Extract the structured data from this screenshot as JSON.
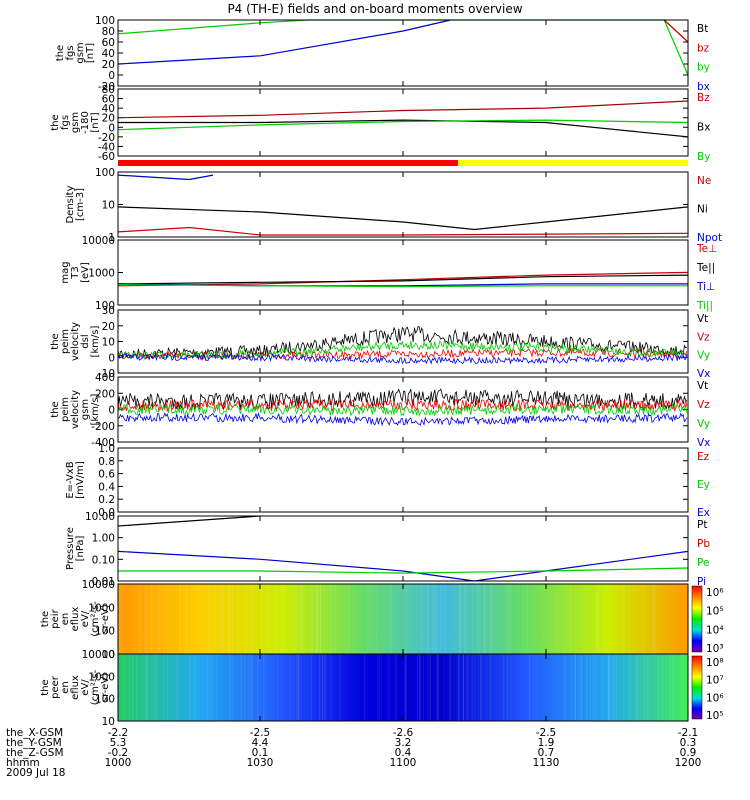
{
  "title": "P4 (TH-E) fields and on-board moments overview",
  "date_label": "2009 Jul 18",
  "panels": [
    {
      "id": "p1",
      "ylabel": [
        "the",
        "fgs",
        "gsm",
        "[nT]"
      ],
      "yticks": [
        "100",
        "80",
        "60",
        "40",
        "20",
        "0",
        "-20"
      ],
      "legend": [
        {
          "t": "Bt",
          "c": "#000000"
        },
        {
          "t": "bz",
          "c": "#cc0000"
        },
        {
          "t": "by",
          "c": "#00cc00"
        },
        {
          "t": "bx",
          "c": "#0000cc"
        }
      ]
    },
    {
      "id": "p2",
      "ylabel": [
        "the",
        "fgs",
        "gsm",
        "-180",
        "[nT]"
      ],
      "yticks": [
        "80",
        "60",
        "40",
        "20",
        "0",
        "-20",
        "-40",
        "-60"
      ],
      "legend": [
        {
          "t": "Bz",
          "c": "#cc0000"
        },
        {
          "t": "Bx",
          "c": "#000000"
        },
        {
          "t": "By",
          "c": "#00cc00"
        }
      ]
    },
    {
      "id": "p3",
      "ylabel": [
        "Density",
        "[cm-3]"
      ],
      "yticks": [
        "100",
        "10",
        "1"
      ],
      "legend": [
        {
          "t": "Ne",
          "c": "#cc0000"
        },
        {
          "t": "Ni",
          "c": "#000000"
        },
        {
          "t": "Npot",
          "c": "#0000cc"
        }
      ]
    },
    {
      "id": "p4",
      "ylabel": [
        "mag",
        "T3",
        "[eV]"
      ],
      "yticks": [
        "10000",
        "1000",
        "100"
      ],
      "legend": [
        {
          "t": "Te⊥",
          "c": "#cc0000"
        },
        {
          "t": "Te||",
          "c": "#000000"
        },
        {
          "t": "Ti⊥",
          "c": "#0000cc"
        },
        {
          "t": "Ti||",
          "c": "#00cc00"
        }
      ]
    },
    {
      "id": "p5",
      "ylabel": [
        "the",
        "peim",
        "velocity",
        "dsl",
        "[km/s]"
      ],
      "yticks": [
        "30",
        "20",
        "10",
        "0",
        "-10"
      ],
      "legend": [
        {
          "t": "Vt",
          "c": "#000000"
        },
        {
          "t": "Vz",
          "c": "#cc0000"
        },
        {
          "t": "Vy",
          "c": "#00cc00"
        },
        {
          "t": "Vx",
          "c": "#0000cc"
        }
      ]
    },
    {
      "id": "p6",
      "ylabel": [
        "the",
        "peim",
        "velocity",
        "gsm",
        "[km/s]"
      ],
      "yticks": [
        "400",
        "200",
        "0",
        "-200",
        "-400"
      ],
      "legend": [
        {
          "t": "Vt",
          "c": "#000000"
        },
        {
          "t": "Vz",
          "c": "#cc0000"
        },
        {
          "t": "Vy",
          "c": "#00cc00"
        },
        {
          "t": "Vx",
          "c": "#0000cc"
        }
      ]
    },
    {
      "id": "p7",
      "ylabel": [
        "E=-VxB",
        "[mV/m]"
      ],
      "yticks": [
        "1.0",
        "0.8",
        "0.6",
        "0.4",
        "0.2",
        "0.0"
      ],
      "legend": [
        {
          "t": "Ez",
          "c": "#cc0000"
        },
        {
          "t": "Ey",
          "c": "#00cc00"
        },
        {
          "t": "Ex",
          "c": "#0000cc"
        }
      ]
    },
    {
      "id": "p8",
      "ylabel": [
        "Pressure",
        "[nPa]"
      ],
      "yticks": [
        "10.00",
        "1.00",
        "0.10",
        "0.01"
      ],
      "legend": [
        {
          "t": "Pt",
          "c": "#000000"
        },
        {
          "t": "Pb",
          "c": "#cc0000"
        },
        {
          "t": "Pe",
          "c": "#00cc00"
        },
        {
          "t": "Pi",
          "c": "#0000cc"
        }
      ]
    },
    {
      "id": "p9",
      "ylabel": [
        "the",
        "peir",
        "en",
        "eflux",
        "eV/",
        "(cm²-s-",
        "sr-eV)"
      ],
      "yticks": [
        "10000",
        "1000",
        "100",
        "10"
      ],
      "cbar": [
        "10⁶",
        "10⁵",
        "10⁴",
        "10³"
      ]
    },
    {
      "id": "p10",
      "ylabel": [
        "the",
        "peer",
        "en",
        "eflux",
        "eV/",
        "(cm²-s-",
        "sr-eV)"
      ],
      "yticks": [
        "10000",
        "1000",
        "100",
        "10"
      ],
      "cbar": [
        "10⁸",
        "10⁷",
        "10⁶",
        "10⁵"
      ]
    }
  ],
  "bottom_axis": {
    "labels": [
      "the_X-GSM",
      "the_Y-GSM",
      "the_Z-GSM",
      "hhmm"
    ],
    "columns": [
      [
        "-2.2",
        "5.3",
        "-0.2",
        "1000"
      ],
      [
        "-2.5",
        "4.4",
        "0.1",
        "1030"
      ],
      [
        "-2.6",
        "3.2",
        "0.4",
        "1100"
      ],
      [
        "-2.5",
        "1.9",
        "0.7",
        "1130"
      ],
      [
        "-2.1",
        "0.3",
        "0.9",
        "1200"
      ]
    ]
  },
  "chart_data": {
    "type": "line",
    "title": "P4 (TH-E) fields and on-board moments overview",
    "x_unit": "hhmm",
    "x_ticks": [
      "1000",
      "1030",
      "1100",
      "1130",
      "1200"
    ],
    "panels": [
      {
        "name": "fgs_gsm",
        "ylim": [
          -20,
          100
        ],
        "series": [
          {
            "name": "bx",
            "x": [
              "1000",
              "1030",
              "1100",
              "1110"
            ],
            "values": [
              20,
              35,
              80,
              100
            ]
          },
          {
            "name": "by",
            "x": [
              "1000",
              "1030",
              "1040",
              "1155",
              "1200"
            ],
            "values": [
              75,
              95,
              100,
              100,
              0
            ]
          },
          {
            "name": "bz",
            "x": [
              "1155",
              "1200"
            ],
            "values": [
              100,
              60
            ]
          }
        ]
      },
      {
        "name": "fgs_gsm_180",
        "ylim": [
          -60,
          80
        ],
        "series": [
          {
            "name": "Bz",
            "x": [
              "1000",
              "1030",
              "1100",
              "1130",
              "1200"
            ],
            "values": [
              20,
              25,
              35,
              40,
              55
            ]
          },
          {
            "name": "Bx",
            "x": [
              "1000",
              "1030",
              "1100",
              "1130",
              "1200"
            ],
            "values": [
              10,
              10,
              15,
              10,
              -20
            ]
          },
          {
            "name": "By",
            "x": [
              "1000",
              "1030",
              "1100",
              "1130",
              "1200"
            ],
            "values": [
              -5,
              5,
              12,
              15,
              10
            ]
          }
        ]
      },
      {
        "name": "density",
        "yscale": "log",
        "ylim": [
          0.5,
          200
        ],
        "series": [
          {
            "name": "Npot",
            "x": [
              "1000",
              "1015",
              "1020"
            ],
            "values": [
              150,
              100,
              150
            ]
          },
          {
            "name": "Ni",
            "x": [
              "1000",
              "1030",
              "1100",
              "1115",
              "1130",
              "1200"
            ],
            "values": [
              8,
              5,
              2,
              1,
              2,
              8
            ]
          },
          {
            "name": "Ne",
            "x": [
              "1000",
              "1015",
              "1030",
              "1100",
              "1200"
            ],
            "values": [
              0.8,
              1.2,
              0.6,
              0.6,
              0.7
            ]
          }
        ]
      },
      {
        "name": "temperature",
        "yscale": "log",
        "ylim": [
          40,
          20000
        ],
        "series": [
          {
            "name": "Te⊥",
            "x": [
              "1000",
              "1030",
              "1100",
              "1130",
              "1200"
            ],
            "values": [
              250,
              300,
              450,
              700,
              900
            ]
          },
          {
            "name": "Te||",
            "x": [
              "1000",
              "1030",
              "1100",
              "1130",
              "1200"
            ],
            "values": [
              300,
              350,
              400,
              600,
              700
            ]
          },
          {
            "name": "Ti⊥",
            "x": [
              "1000",
              "1030",
              "1100",
              "1130",
              "1200"
            ],
            "values": [
              300,
              250,
              250,
              300,
              300
            ]
          },
          {
            "name": "Ti||",
            "x": [
              "1000",
              "1030",
              "1100",
              "1130",
              "1200"
            ],
            "values": [
              280,
              250,
              230,
              250,
              250
            ]
          }
        ]
      },
      {
        "name": "velocity_dsl",
        "ylim": [
          -10,
          30
        ],
        "series": [
          {
            "name": "Vt",
            "x": [
              "1000",
              "1030",
              "1100",
              "1130",
              "1200"
            ],
            "values": [
              2,
              4,
              15,
              10,
              4
            ]
          },
          {
            "name": "Vz",
            "x": [
              "1000",
              "1030",
              "1100",
              "1130",
              "1200"
            ],
            "values": [
              1,
              1,
              2,
              3,
              2
            ]
          },
          {
            "name": "Vy",
            "x": [
              "1000",
              "1030",
              "1100",
              "1130",
              "1200"
            ],
            "values": [
              1,
              2,
              8,
              6,
              2
            ]
          },
          {
            "name": "Vx",
            "x": [
              "1000",
              "1030",
              "1100",
              "1130",
              "1200"
            ],
            "values": [
              0,
              0,
              -2,
              -2,
              0
            ]
          }
        ]
      },
      {
        "name": "velocity_gsm",
        "ylim": [
          -400,
          400
        ],
        "series": [
          {
            "name": "Vt",
            "x": [
              "1000",
              "1030",
              "1100",
              "1130",
              "1200"
            ],
            "values": [
              100,
              100,
              150,
              130,
              100
            ]
          },
          {
            "name": "Vz",
            "x": [
              "1000",
              "1030",
              "1100",
              "1130",
              "1200"
            ],
            "values": [
              50,
              50,
              60,
              50,
              50
            ]
          },
          {
            "name": "Vy",
            "x": [
              "1000",
              "1030",
              "1100",
              "1130",
              "1200"
            ],
            "values": [
              0,
              0,
              -20,
              0,
              0
            ]
          },
          {
            "name": "Vx",
            "x": [
              "1000",
              "1030",
              "1100",
              "1130",
              "1200"
            ],
            "values": [
              -100,
              -100,
              -150,
              -120,
              -100
            ]
          }
        ]
      },
      {
        "name": "efield",
        "ylim": [
          0,
          1
        ],
        "series": []
      },
      {
        "name": "pressure",
        "yscale": "log",
        "ylim": [
          0.005,
          40
        ],
        "series": [
          {
            "name": "Pt",
            "x": [
              "1000",
              "1015",
              "1030"
            ],
            "values": [
              10,
              20,
              40
            ]
          },
          {
            "name": "Pi",
            "x": [
              "1000",
              "1030",
              "1100",
              "1115",
              "1130",
              "1200"
            ],
            "values": [
              0.3,
              0.1,
              0.02,
              0.005,
              0.02,
              0.3
            ]
          },
          {
            "name": "Pe",
            "x": [
              "1000",
              "1030",
              "1100",
              "1130",
              "1200"
            ],
            "values": [
              0.02,
              0.02,
              0.015,
              0.02,
              0.03
            ]
          }
        ]
      }
    ]
  }
}
